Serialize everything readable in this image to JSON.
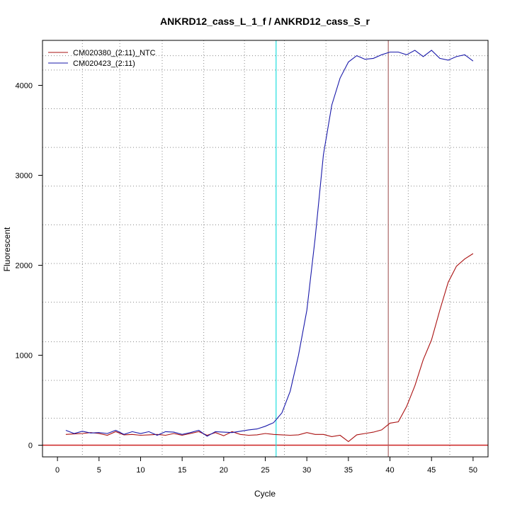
{
  "chart_data": {
    "type": "line",
    "title": "ANKRD12_cass_L_1_f / ANKRD12_cass_S_r",
    "xlabel": "Cycle",
    "ylabel": "Fluorescent",
    "xlim": [
      -1.8,
      51.8
    ],
    "ylim": [
      -130,
      4500
    ],
    "x_ticks": [
      0,
      5,
      10,
      15,
      20,
      25,
      30,
      35,
      40,
      45,
      50
    ],
    "y_ticks": [
      0,
      1000,
      2000,
      3000,
      4000
    ],
    "x_gridlines": [
      3,
      7.5,
      12.6,
      17.6,
      22.5,
      27.3,
      32.3,
      37.2,
      42.2,
      47.2
    ],
    "y_gridlines": [
      0,
      300,
      720,
      1150,
      1590,
      2020,
      2450,
      2880,
      3310,
      3740,
      4170,
      4330
    ],
    "grid": true,
    "legend_position": "top-left",
    "threshold_y": 0,
    "threshold_color": "#cc2222",
    "vertical_markers": [
      {
        "x": 26.3,
        "color": "#22e0e0"
      },
      {
        "x": 39.8,
        "color": "#aa6666"
      }
    ],
    "series": [
      {
        "name": "CM020380_(2:11)_NTC",
        "color": "#aa1111",
        "x": [
          1,
          2,
          3,
          4,
          5,
          6,
          7,
          8,
          9,
          10,
          11,
          12,
          13,
          14,
          15,
          16,
          17,
          18,
          19,
          20,
          21,
          22,
          23,
          24,
          25,
          26,
          27,
          28,
          29,
          30,
          31,
          32,
          33,
          34,
          35,
          36,
          37,
          38,
          39,
          40,
          41,
          42,
          43,
          44,
          45,
          46,
          47,
          48,
          49,
          50
        ],
        "y": [
          120,
          125,
          130,
          140,
          130,
          110,
          150,
          115,
          120,
          110,
          115,
          120,
          110,
          130,
          110,
          130,
          150,
          110,
          140,
          105,
          150,
          120,
          110,
          115,
          130,
          120,
          115,
          110,
          115,
          140,
          120,
          120,
          95,
          110,
          40,
          115,
          130,
          145,
          170,
          245,
          260,
          430,
          660,
          950,
          1170,
          1500,
          1810,
          1990,
          2070,
          2130
        ]
      },
      {
        "name": "CM020423_(2:11)",
        "color": "#1a1aaa",
        "x": [
          1,
          2,
          3,
          4,
          5,
          6,
          7,
          8,
          9,
          10,
          11,
          12,
          13,
          14,
          15,
          16,
          17,
          18,
          19,
          20,
          21,
          22,
          23,
          24,
          25,
          26,
          27,
          28,
          29,
          30,
          31,
          32,
          33,
          34,
          35,
          36,
          37,
          38,
          39,
          40,
          41,
          42,
          43,
          44,
          45,
          46,
          47,
          48,
          49,
          50
        ],
        "y": [
          165,
          130,
          155,
          135,
          140,
          130,
          165,
          120,
          150,
          130,
          150,
          110,
          150,
          145,
          120,
          140,
          165,
          100,
          150,
          145,
          140,
          155,
          170,
          180,
          210,
          250,
          360,
          600,
          1000,
          1500,
          2300,
          3230,
          3780,
          4080,
          4260,
          4330,
          4290,
          4300,
          4340,
          4370,
          4370,
          4340,
          4390,
          4320,
          4390,
          4300,
          4280,
          4320,
          4340,
          4270
        ]
      }
    ]
  }
}
